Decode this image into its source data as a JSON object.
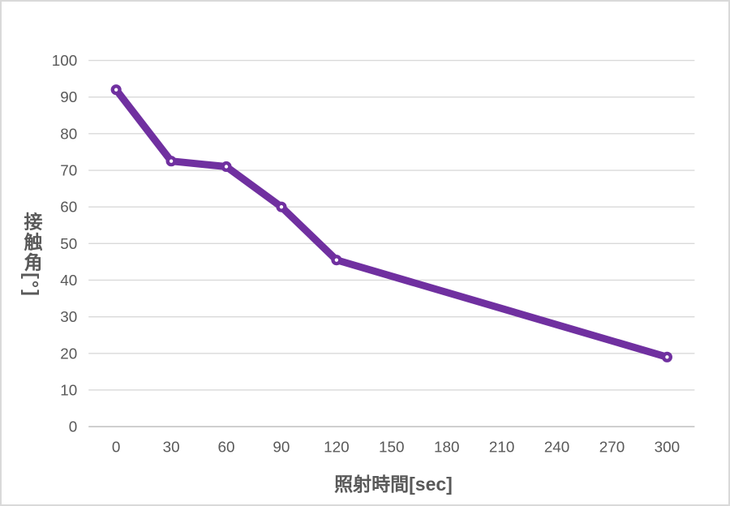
{
  "chart_data": {
    "type": "line",
    "title": "",
    "xlabel": "照射時間[sec]",
    "ylabel": "接触角[°]",
    "x_axis_type": "category",
    "categories": [
      "0",
      "30",
      "60",
      "90",
      "120",
      "150",
      "180",
      "210",
      "240",
      "270",
      "300"
    ],
    "y_tick_labels": [
      "0",
      "10",
      "20",
      "30",
      "40",
      "50",
      "60",
      "70",
      "80",
      "90",
      "100"
    ],
    "ylim": [
      0,
      100
    ],
    "y_tick_step": 10,
    "grid": true,
    "legend": "none",
    "series": [
      {
        "points": [
          {
            "category": "0",
            "value": 92
          },
          {
            "category": "30",
            "value": 72.5
          },
          {
            "category": "60",
            "value": 71
          },
          {
            "category": "90",
            "value": 60
          },
          {
            "category": "120",
            "value": 45.5
          },
          {
            "category": "300",
            "value": 19
          }
        ],
        "color": "#7030A0",
        "line_width": 9,
        "marker": "open-circle"
      }
    ],
    "colors": {
      "line": "#7030A0",
      "gridline": "#D9D9D9",
      "axis_line": "#BFBFBF",
      "tick_text": "#595959",
      "axis_title_text": "#595959",
      "background": "#FFFFFF",
      "border": "#D9D9D9"
    }
  }
}
